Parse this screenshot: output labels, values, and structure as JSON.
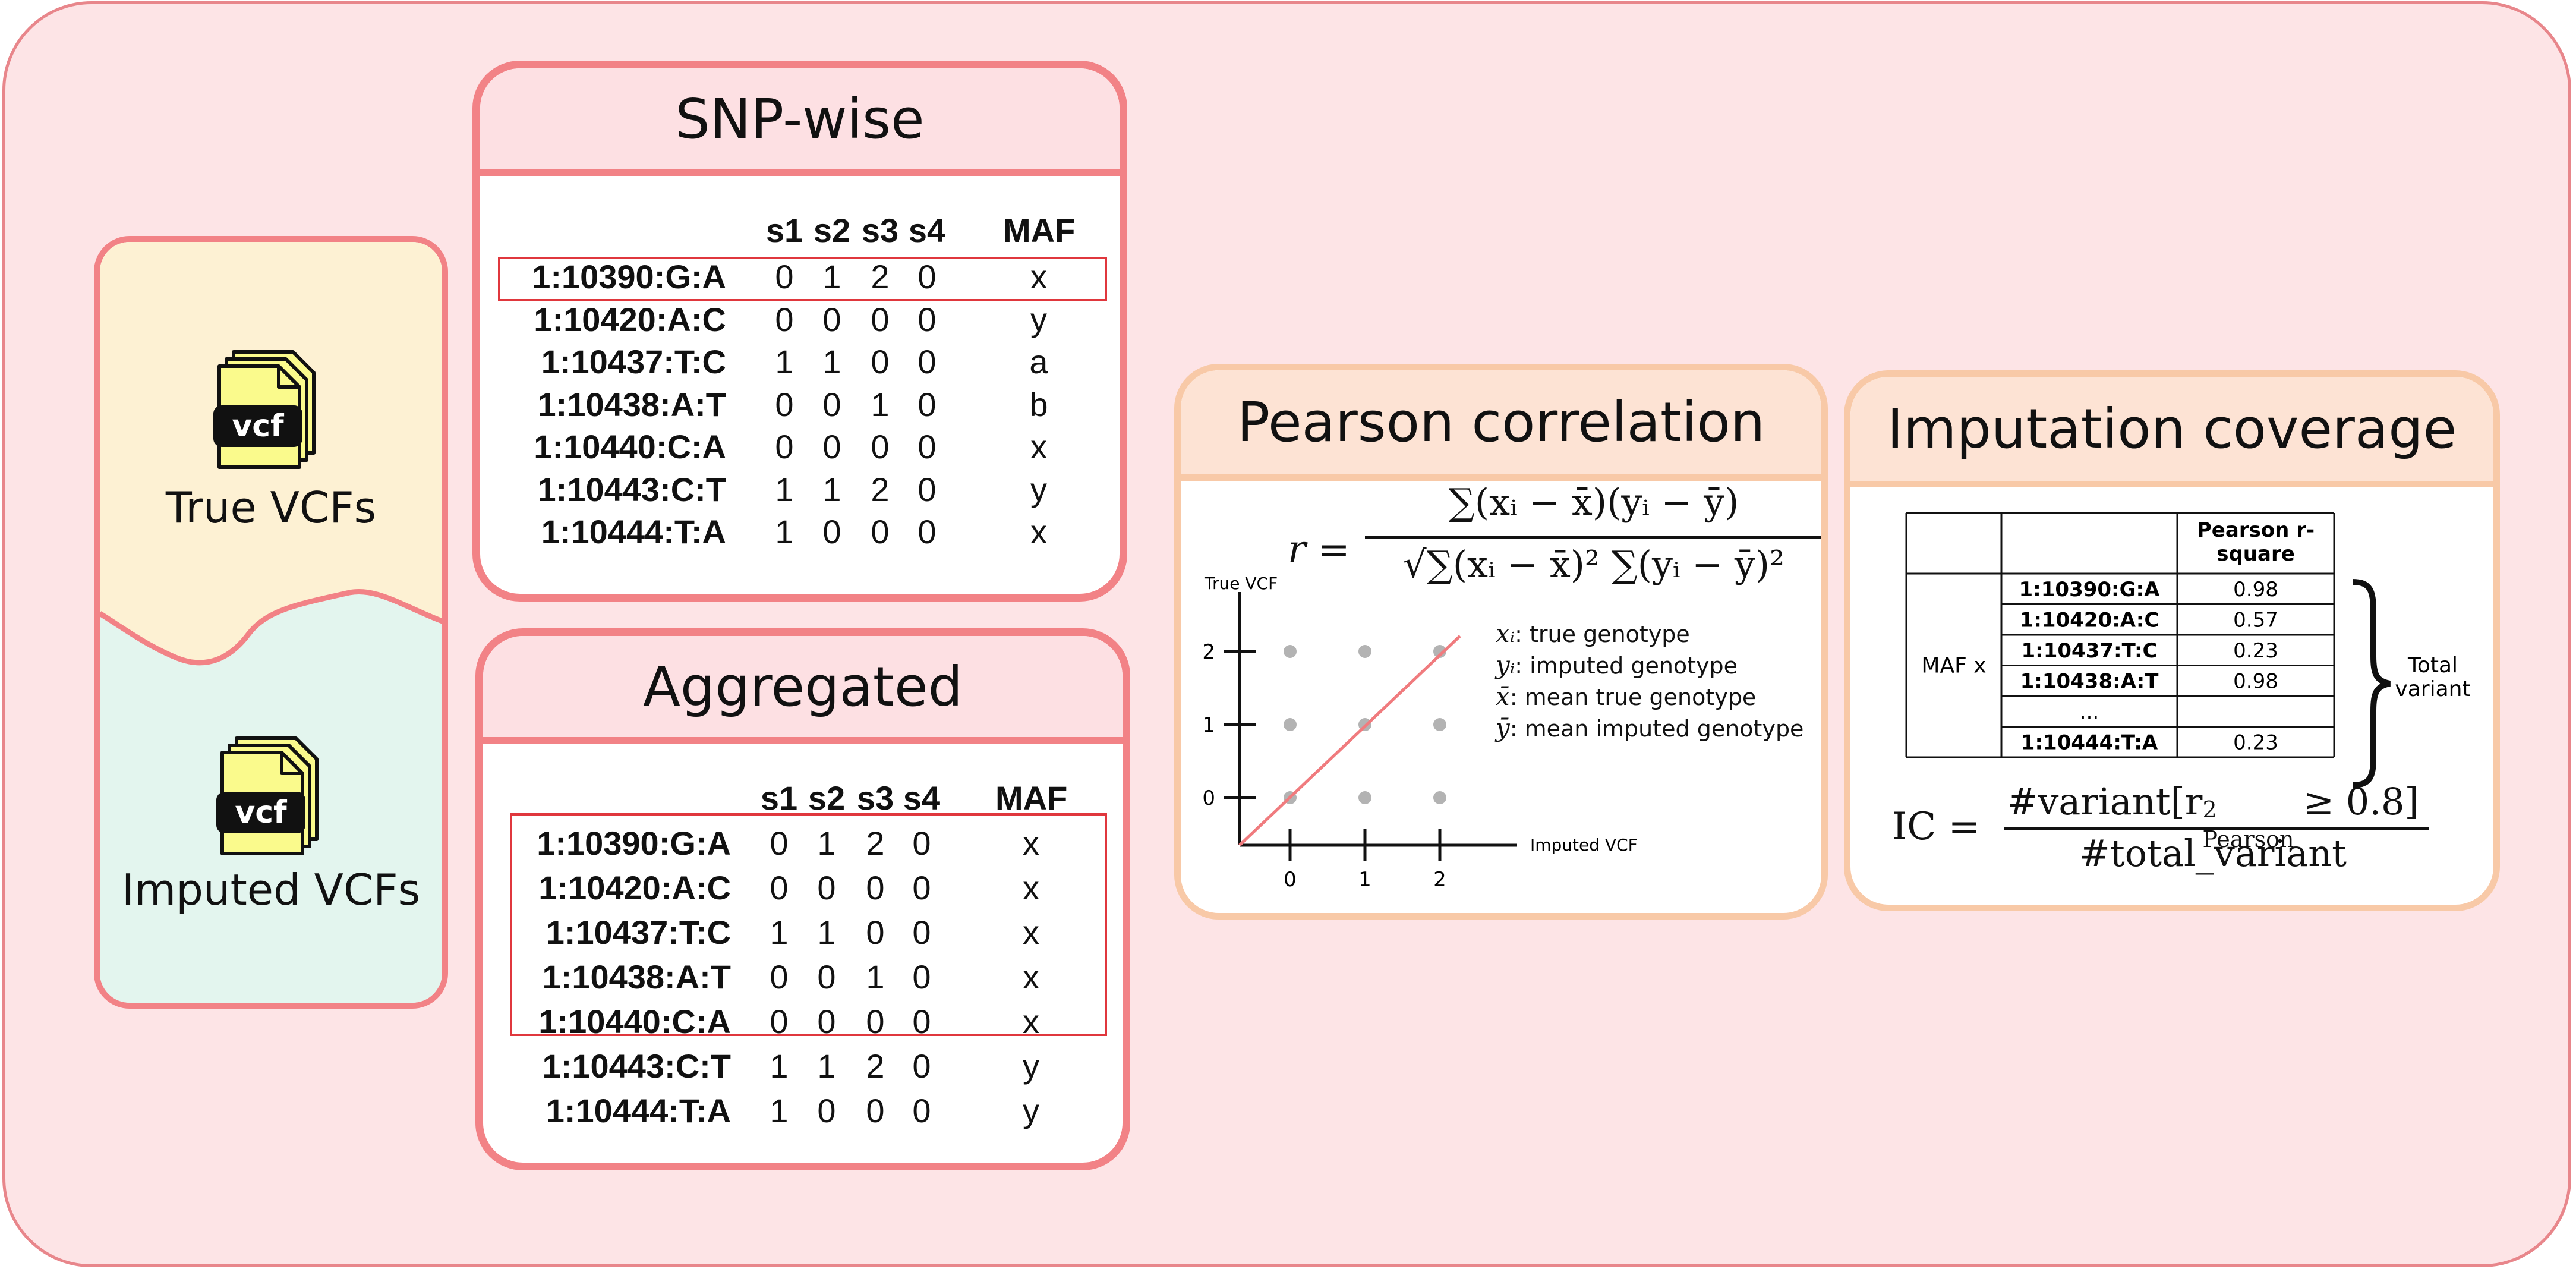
{
  "sources": {
    "true_label": "True VCFs",
    "imputed_label": "Imputed VCFs",
    "file_icon_text": "vcf"
  },
  "snp_wise": {
    "title": "SNP-wise",
    "columns": [
      "s1",
      "s2",
      "s3",
      "s4",
      "MAF"
    ],
    "rows": [
      {
        "id": "1:10390:G:A",
        "g": [
          "0",
          "1",
          "2",
          "0"
        ],
        "maf": "x"
      },
      {
        "id": "1:10420:A:C",
        "g": [
          "0",
          "0",
          "0",
          "0"
        ],
        "maf": "y"
      },
      {
        "id": "1:10437:T:C",
        "g": [
          "1",
          "1",
          "0",
          "0"
        ],
        "maf": "a"
      },
      {
        "id": "1:10438:A:T",
        "g": [
          "0",
          "0",
          "1",
          "0"
        ],
        "maf": "b"
      },
      {
        "id": "1:10440:C:A",
        "g": [
          "0",
          "0",
          "0",
          "0"
        ],
        "maf": "x"
      },
      {
        "id": "1:10443:C:T",
        "g": [
          "1",
          "1",
          "2",
          "0"
        ],
        "maf": "y"
      },
      {
        "id": "1:10444:T:A",
        "g": [
          "1",
          "0",
          "0",
          "0"
        ],
        "maf": "x"
      }
    ]
  },
  "aggregated": {
    "title": "Aggregated",
    "columns": [
      "s1",
      "s2",
      "s3",
      "s4",
      "MAF"
    ],
    "rows": [
      {
        "id": "1:10390:G:A",
        "g": [
          "0",
          "1",
          "2",
          "0"
        ],
        "maf": "x"
      },
      {
        "id": "1:10420:A:C",
        "g": [
          "0",
          "0",
          "0",
          "0"
        ],
        "maf": "x"
      },
      {
        "id": "1:10437:T:C",
        "g": [
          "1",
          "1",
          "0",
          "0"
        ],
        "maf": "x"
      },
      {
        "id": "1:10438:A:T",
        "g": [
          "0",
          "0",
          "1",
          "0"
        ],
        "maf": "x"
      },
      {
        "id": "1:10440:C:A",
        "g": [
          "0",
          "0",
          "0",
          "0"
        ],
        "maf": "x"
      },
      {
        "id": "1:10443:C:T",
        "g": [
          "1",
          "1",
          "2",
          "0"
        ],
        "maf": "y"
      },
      {
        "id": "1:10444:T:A",
        "g": [
          "1",
          "0",
          "0",
          "0"
        ],
        "maf": "y"
      }
    ]
  },
  "pearson": {
    "title": "Pearson correlation",
    "formula_lhs": "r =",
    "formula_num": "∑(xᵢ − x̄)(yᵢ − ȳ)",
    "formula_den": "√∑(xᵢ − x̄)² ∑(yᵢ − ȳ)²",
    "y_axis_label": "True VCF",
    "x_axis_label": "Imputed VCF",
    "ticks": [
      "0",
      "1",
      "2"
    ],
    "legend": [
      {
        "sym": "xᵢ",
        "text": ": true genotype"
      },
      {
        "sym": "yᵢ",
        "text": ": imputed genotype"
      },
      {
        "sym": "x̄",
        "text": ": mean true genotype"
      },
      {
        "sym": "ȳ",
        "text": ": mean imputed genotype"
      }
    ],
    "colors": {
      "line": "#f07b7e",
      "points": "#b3b3b3"
    }
  },
  "coverage": {
    "title": "Imputation coverage",
    "col_header": "Pearson r-square",
    "col_header_lines": [
      "Pearson r-",
      "square"
    ],
    "group_label": "MAF x",
    "rows": [
      {
        "id": "1:10390:G:A",
        "r2": "0.98"
      },
      {
        "id": "1:10420:A:C",
        "r2": "0.57"
      },
      {
        "id": "1:10437:T:C",
        "r2": "0.23"
      },
      {
        "id": "1:10438:A:T",
        "r2": "0.98"
      },
      {
        "id": "...",
        "r2": ""
      },
      {
        "id": "1:10444:T:A",
        "r2": "0.23"
      }
    ],
    "brace_label_lines": [
      "Total",
      "variant"
    ],
    "formula_lhs": "IC =",
    "formula_num": "#variant[r²Pearson ≥ 0.8]",
    "formula_num_main": "#variant[r",
    "formula_num_sup": "2",
    "formula_num_sub": "Pearson",
    "formula_num_tail": " ≥ 0.8]",
    "formula_den": "#total_variant"
  },
  "colors": {
    "background": "#fde4e6",
    "red_border": "#f28286",
    "orange_border": "#f8c9a7",
    "true_vcf_fill": "#fdf1d3",
    "imputed_vcf_fill": "#e3f5ee",
    "icon_yellow": "#fafa8c"
  }
}
